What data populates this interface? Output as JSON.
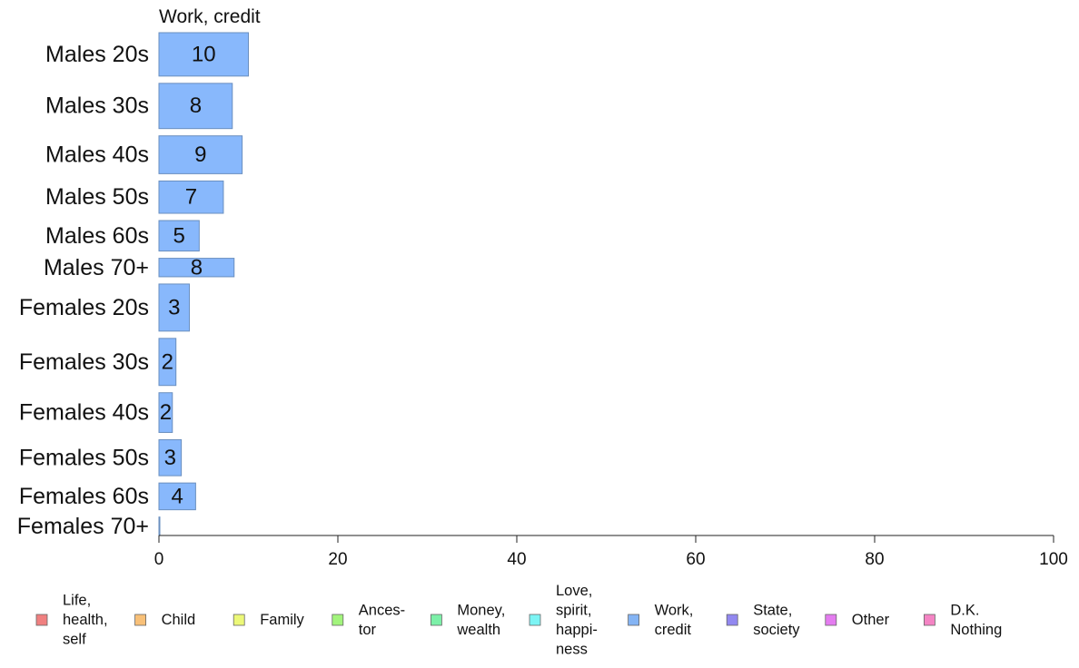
{
  "chart_data": {
    "type": "bar",
    "orientation": "horizontal",
    "title": "Work, credit",
    "categories": [
      "Males 20s",
      "Males 30s",
      "Males 40s",
      "Males 50s",
      "Males 60s",
      "Males 70+",
      "Females 20s",
      "Females 30s",
      "Females 40s",
      "Females 50s",
      "Females 60s",
      "Females 70+"
    ],
    "values": [
      10,
      8.2,
      9.3,
      7.2,
      4.5,
      8.4,
      3.4,
      1.9,
      1.5,
      2.5,
      4.1,
      0.1
    ],
    "value_labels": [
      "10",
      "8",
      "9",
      "7",
      "5",
      "8",
      "3",
      "2",
      "2",
      "3",
      "4",
      ""
    ],
    "bar_weights": [
      47,
      49,
      41,
      35,
      33,
      20,
      51,
      51,
      43,
      39,
      29,
      20
    ],
    "xlim": [
      0,
      100
    ],
    "xticks": [
      0,
      20,
      40,
      60,
      80,
      100
    ],
    "xlabel": "",
    "ylabel": "",
    "grid": false,
    "legend_position": "bottom",
    "legend": [
      {
        "label": "Life, health, self",
        "lines": [
          "Life,",
          "health,",
          "self"
        ],
        "color": "#f08080"
      },
      {
        "label": "Child",
        "lines": [
          "Child"
        ],
        "color": "#f8c078"
      },
      {
        "label": "Family",
        "lines": [
          "Family"
        ],
        "color": "#ecf878"
      },
      {
        "label": "Ances-tor",
        "lines": [
          "Ances-",
          "tor"
        ],
        "color": "#a2f47c"
      },
      {
        "label": "Money, wealth",
        "lines": [
          "Money,",
          "wealth"
        ],
        "color": "#7cf0a8"
      },
      {
        "label": "Love, spirit, happi-ness",
        "lines": [
          "Love,",
          "spirit,",
          "happi-",
          "ness"
        ],
        "color": "#7cf4f4"
      },
      {
        "label": "Work, credit",
        "lines": [
          "Work,",
          "credit"
        ],
        "color": "#84b4f4"
      },
      {
        "label": "State, society",
        "lines": [
          "State,",
          "society"
        ],
        "color": "#9288f0"
      },
      {
        "label": "Other",
        "lines": [
          "Other"
        ],
        "color": "#e47cf0"
      },
      {
        "label": "D.K. Nothing",
        "lines": [
          "D.K.",
          "Nothing"
        ],
        "color": "#f484c4"
      }
    ],
    "bar_color": "#88b8fc",
    "bar_edge_color": "#6a8fbf"
  }
}
